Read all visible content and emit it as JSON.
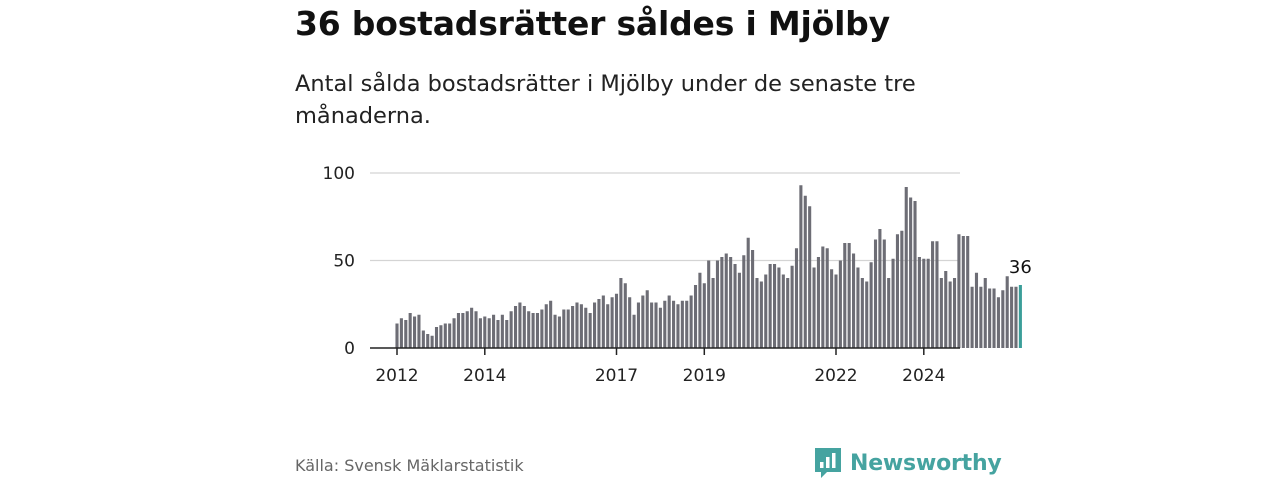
{
  "title": "36 bostadsrätter såldes i Mjölby",
  "subtitle": "Antal sålda bostadsrätter i Mjölby under de senaste tre månaderna.",
  "source": "Källa: Svensk Mäklarstatistik",
  "brand": {
    "name": "Newsworthy"
  },
  "colors": {
    "bar": "#6d6d75",
    "highlight": "#3a9e99",
    "grid": "#d4d4d4",
    "axis": "#222222",
    "brand": "#45a3a0"
  },
  "chart_data": {
    "type": "bar",
    "title": "36 bostadsrätter såldes i Mjölby",
    "xlabel": "",
    "ylabel": "",
    "ylim": [
      0,
      100
    ],
    "yticks": [
      0,
      50,
      100
    ],
    "x_start": "2012-01",
    "x_end": "2024-03",
    "xtick_labels": [
      {
        "label": "2012",
        "month_index": 0
      },
      {
        "label": "2014",
        "month_index": 20
      },
      {
        "label": "2017",
        "month_index": 50
      },
      {
        "label": "2019",
        "month_index": 70
      },
      {
        "label": "2022",
        "month_index": 100
      },
      {
        "label": "2024",
        "month_index": 120
      }
    ],
    "values": [
      14,
      17,
      16,
      20,
      18,
      19,
      10,
      8,
      7,
      12,
      13,
      14,
      14,
      17,
      20,
      20,
      21,
      23,
      21,
      17,
      18,
      17,
      19,
      16,
      19,
      16,
      21,
      24,
      26,
      24,
      21,
      20,
      20,
      22,
      25,
      27,
      19,
      18,
      22,
      22,
      24,
      26,
      25,
      23,
      20,
      26,
      28,
      30,
      25,
      29,
      31,
      40,
      37,
      29,
      19,
      26,
      30,
      33,
      26,
      26,
      23,
      27,
      30,
      27,
      25,
      27,
      27,
      30,
      36,
      43,
      37,
      50,
      40,
      50,
      52,
      54,
      52,
      48,
      43,
      53,
      63,
      56,
      40,
      38,
      42,
      48,
      48,
      46,
      42,
      40,
      47,
      57,
      93,
      87,
      81,
      46,
      52,
      58,
      57,
      45,
      42,
      50,
      60,
      60,
      54,
      46,
      40,
      38,
      49,
      62,
      68,
      62,
      40,
      51,
      65,
      67,
      92,
      86,
      84,
      52,
      51,
      51,
      61,
      61,
      40,
      44,
      38,
      40,
      65,
      64,
      64,
      35,
      43,
      35,
      40,
      34,
      34,
      29,
      33,
      41,
      35,
      35,
      36
    ],
    "highlight_last": true,
    "annotation": {
      "label": "36"
    }
  }
}
